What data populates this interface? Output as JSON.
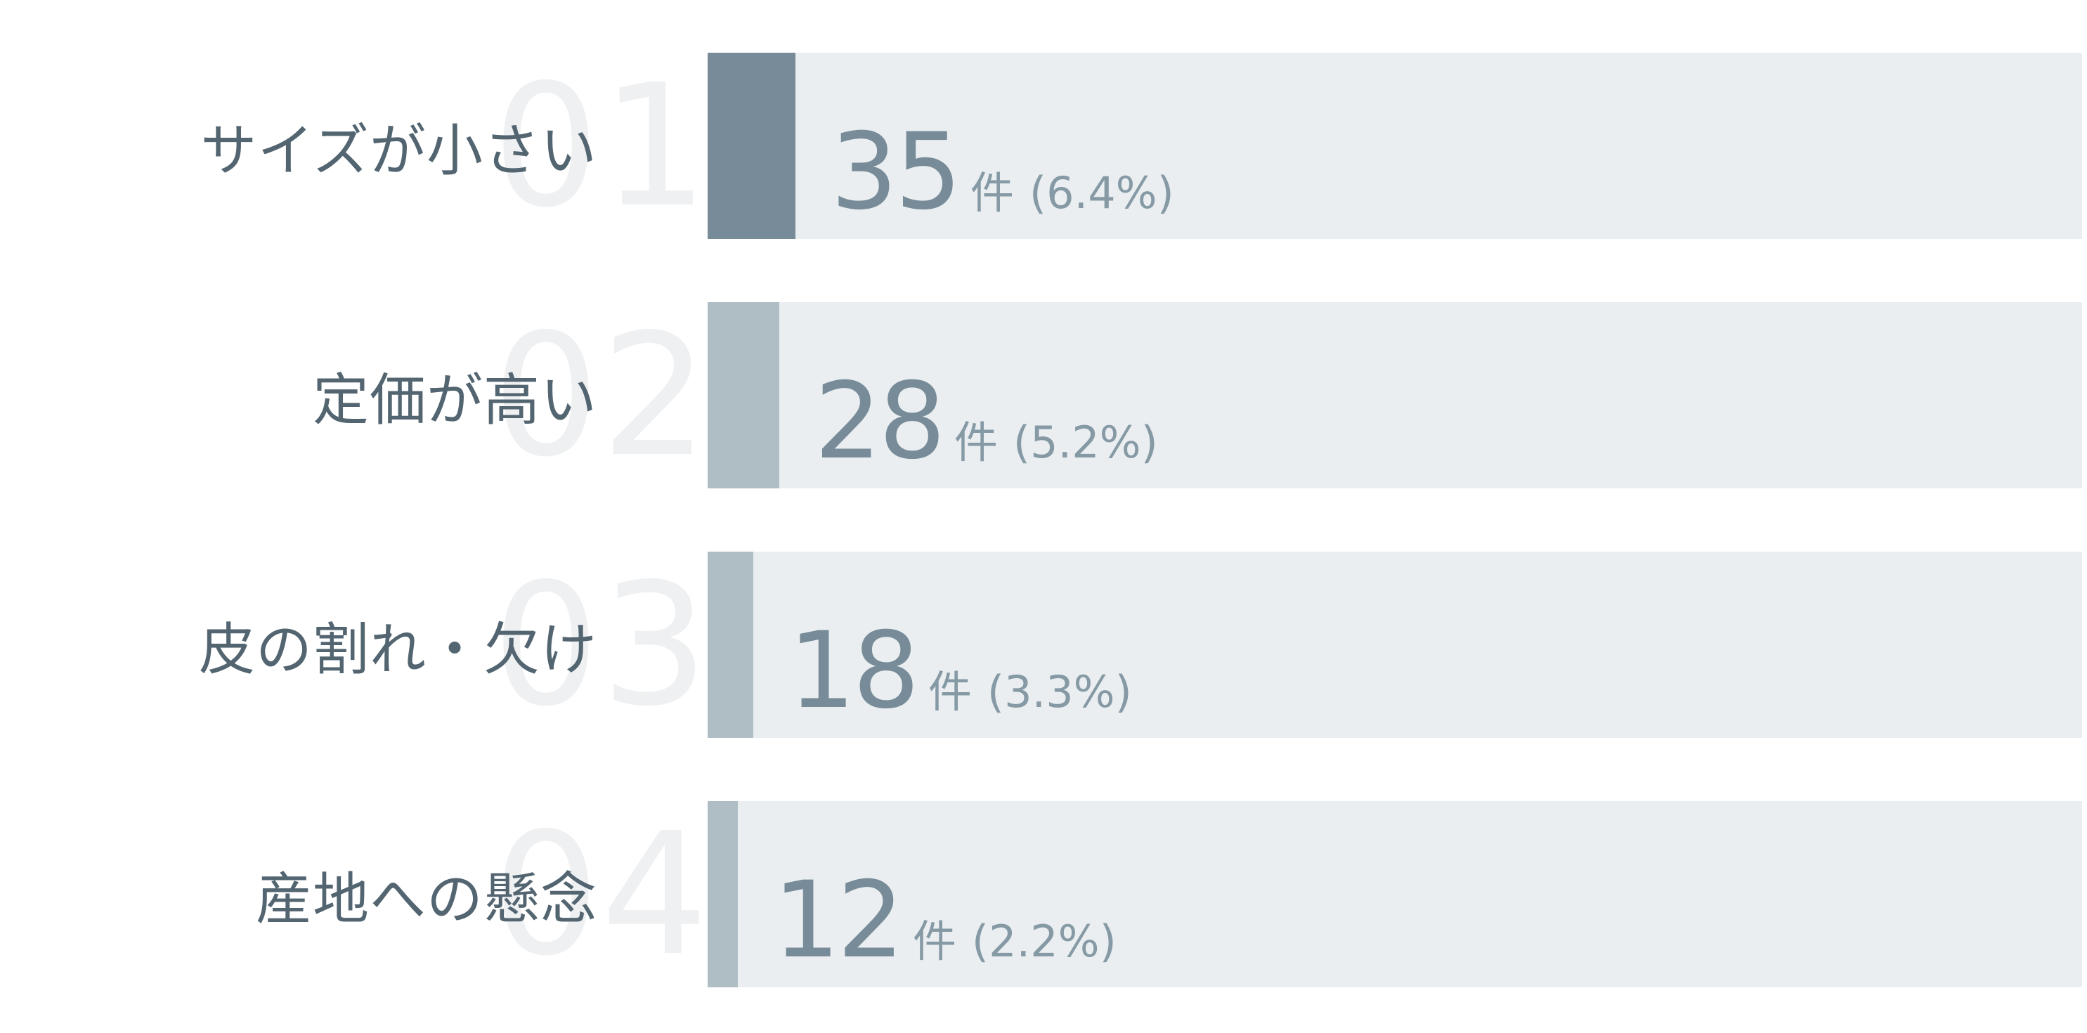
{
  "colors": {
    "primary_fill": "#778c98",
    "secondary_fill": "#afbec5",
    "track": "#eaeef1",
    "label": "#536571",
    "value": "#778c98",
    "rank": "#eef0f2"
  },
  "unit_label": "件",
  "chart_data": {
    "type": "bar",
    "orientation": "horizontal",
    "categories": [
      "サイズが小さい",
      "定価が高い",
      "皮の割れ・欠け",
      "産地への懸念"
    ],
    "ranks": [
      "01",
      "02",
      "03",
      "04"
    ],
    "values": [
      35,
      28,
      18,
      12
    ],
    "percent_labels": [
      "(6.4%)",
      "(5.2%)",
      "(3.3%)",
      "(2.2%)"
    ],
    "percentages": [
      6.4,
      5.2,
      3.3,
      2.2
    ],
    "xlim": [
      0,
      100
    ],
    "title": "",
    "xlabel": "",
    "ylabel": "",
    "grid": false,
    "legend": "none"
  }
}
